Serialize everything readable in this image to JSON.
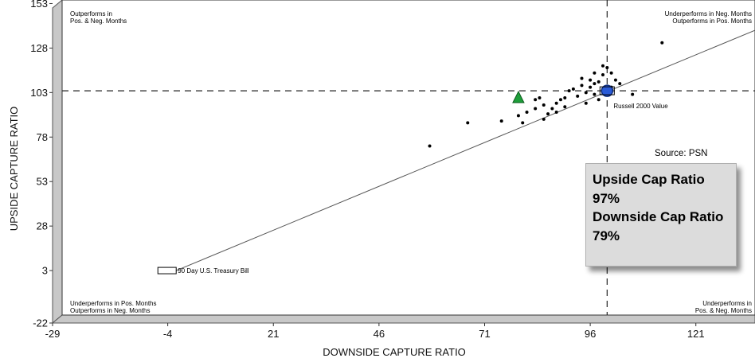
{
  "chart_data": {
    "type": "scatter",
    "xlabel": "DOWNSIDE CAPTURE RATIO",
    "ylabel": "UPSIDE CAPTURE RATIO",
    "xlim": [
      -29,
      135
    ],
    "ylim": [
      -22,
      155
    ],
    "xticks": [
      -29,
      -4,
      21,
      46,
      71,
      96,
      121
    ],
    "yticks": [
      -22,
      3,
      28,
      53,
      78,
      103,
      128,
      153
    ],
    "reference_lines": {
      "vertical_x": 100,
      "horizontal_y": 104
    },
    "quadrant_labels": {
      "top_left": [
        "Outperforms in",
        "Pos. & Neg. Months"
      ],
      "top_right": [
        "Underperforms in Neg. Months",
        "Outperforms in Pos. Months"
      ],
      "bottom_left": [
        "Underperforms in Pos. Months",
        "Outperforms in Neg. Months"
      ],
      "bottom_right": [
        "Underperforms in",
        "Pos. & Neg. Months"
      ]
    },
    "benchmark_line": {
      "from": [
        -2,
        3
      ],
      "to": [
        135,
        138
      ]
    },
    "benchmark_labels": {
      "treasury": "90 Day U.S. Treasury Bill",
      "russell": "Russell 2000 Value"
    },
    "highlight_points": [
      {
        "x": 79,
        "y": 100,
        "marker": "triangle",
        "color": "#1e9e3a"
      },
      {
        "x": 100,
        "y": 104,
        "marker": "circle",
        "color": "#2a5bd7"
      }
    ],
    "treasury_point": {
      "x": -2,
      "y": 3
    },
    "peer_points": [
      [
        58,
        73
      ],
      [
        67,
        86
      ],
      [
        75,
        87
      ],
      [
        79,
        90
      ],
      [
        80,
        86
      ],
      [
        81,
        92
      ],
      [
        83,
        94
      ],
      [
        83,
        99
      ],
      [
        84,
        100
      ],
      [
        85,
        88
      ],
      [
        85,
        96
      ],
      [
        86,
        91
      ],
      [
        87,
        94
      ],
      [
        88,
        97
      ],
      [
        88,
        92
      ],
      [
        89,
        99
      ],
      [
        90,
        95
      ],
      [
        90,
        100
      ],
      [
        91,
        104
      ],
      [
        92,
        105
      ],
      [
        93,
        101
      ],
      [
        94,
        107
      ],
      [
        94,
        111
      ],
      [
        95,
        103
      ],
      [
        95,
        97
      ],
      [
        96,
        110
      ],
      [
        96,
        106
      ],
      [
        97,
        114
      ],
      [
        97,
        108
      ],
      [
        97,
        102
      ],
      [
        98,
        109
      ],
      [
        98,
        99
      ],
      [
        99,
        113
      ],
      [
        99,
        118
      ],
      [
        100,
        117
      ],
      [
        100,
        103
      ],
      [
        101,
        106
      ],
      [
        101,
        114
      ],
      [
        102,
        110
      ],
      [
        103,
        108
      ],
      [
        106,
        102
      ],
      [
        113,
        131
      ]
    ],
    "source": "Source:  PSN",
    "callout": {
      "line1": "Upside Cap Ratio",
      "line2": "97%",
      "line3": "Downside Cap Ratio",
      "line4": "79%"
    }
  }
}
